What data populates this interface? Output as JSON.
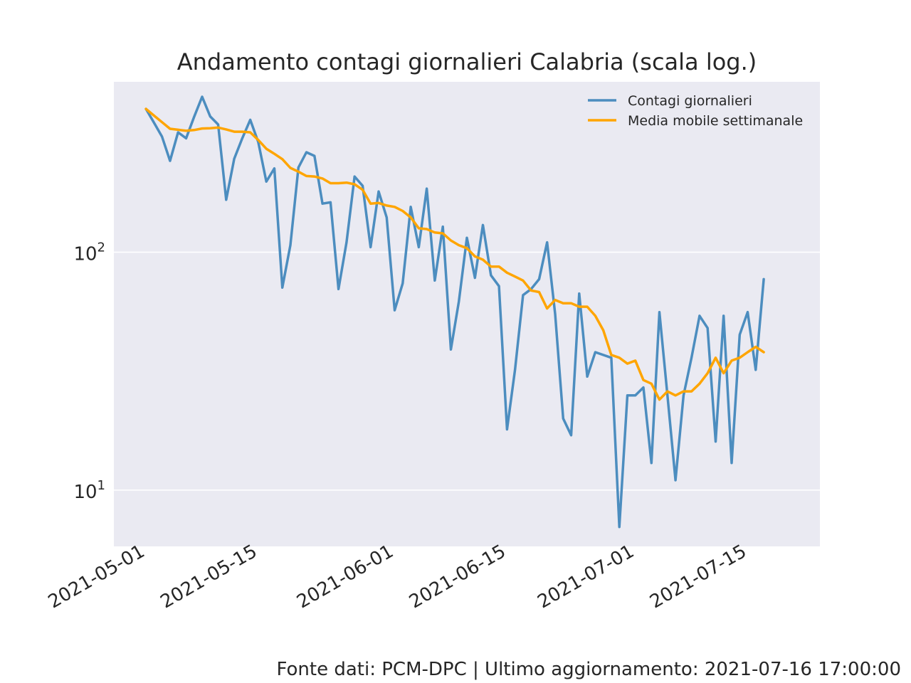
{
  "chart_data": {
    "type": "line",
    "title": "Andamento contagi giornalieri Calabria (scala log.)",
    "yscale": "log",
    "ylim": [
      5.8,
      520
    ],
    "xlim": [
      "2021-04-27",
      "2021-07-24"
    ],
    "grid": true,
    "legend_position": "top-right",
    "x_ticks": [
      "2021-05-01",
      "2021-05-15",
      "2021-06-01",
      "2021-06-15",
      "2021-07-01",
      "2021-07-15"
    ],
    "y_ticks": [
      {
        "value": 10,
        "base": "10",
        "exp": "1"
      },
      {
        "value": 100,
        "base": "10",
        "exp": "2"
      }
    ],
    "x": [
      "2021-05-01",
      "2021-05-02",
      "2021-05-03",
      "2021-05-04",
      "2021-05-05",
      "2021-05-06",
      "2021-05-07",
      "2021-05-08",
      "2021-05-09",
      "2021-05-10",
      "2021-05-11",
      "2021-05-12",
      "2021-05-13",
      "2021-05-14",
      "2021-05-15",
      "2021-05-16",
      "2021-05-17",
      "2021-05-18",
      "2021-05-19",
      "2021-05-20",
      "2021-05-21",
      "2021-05-22",
      "2021-05-23",
      "2021-05-24",
      "2021-05-25",
      "2021-05-26",
      "2021-05-27",
      "2021-05-28",
      "2021-05-29",
      "2021-05-30",
      "2021-05-31",
      "2021-06-01",
      "2021-06-02",
      "2021-06-03",
      "2021-06-04",
      "2021-06-05",
      "2021-06-06",
      "2021-06-07",
      "2021-06-08",
      "2021-06-09",
      "2021-06-10",
      "2021-06-11",
      "2021-06-12",
      "2021-06-13",
      "2021-06-14",
      "2021-06-15",
      "2021-06-16",
      "2021-06-17",
      "2021-06-18",
      "2021-06-19",
      "2021-06-20",
      "2021-06-21",
      "2021-06-22",
      "2021-06-23",
      "2021-06-24",
      "2021-06-25",
      "2021-06-26",
      "2021-06-27",
      "2021-06-28",
      "2021-06-29",
      "2021-06-30",
      "2021-07-01",
      "2021-07-02",
      "2021-07-03",
      "2021-07-04",
      "2021-07-05",
      "2021-07-06",
      "2021-07-07",
      "2021-07-08",
      "2021-07-09",
      "2021-07-10",
      "2021-07-11",
      "2021-07-12",
      "2021-07-13",
      "2021-07-14",
      "2021-07-15",
      "2021-07-16",
      "2021-07-17"
    ],
    "series": [
      {
        "name": "Contagi giornalieri",
        "color": "#4c8dbf",
        "values": [
          400,
          350,
          306,
          242,
          319,
          301,
          370,
          450,
          372,
          344,
          166,
          247,
          301,
          360,
          290,
          198,
          225,
          71,
          107,
          227,
          263,
          254,
          160,
          162,
          70,
          110,
          208,
          190,
          105,
          180,
          140,
          57,
          74,
          155,
          105,
          185,
          76,
          128,
          39,
          62,
          115,
          78,
          130,
          80,
          72,
          18,
          32,
          66,
          70,
          77,
          110,
          55,
          20,
          17,
          67,
          30,
          38,
          37,
          36,
          7,
          25,
          25,
          27,
          13,
          56,
          25,
          11,
          25,
          36,
          54,
          48,
          16,
          54,
          13,
          45,
          56,
          32,
          77
        ]
      },
      {
        "name": "Media mobile settimanale",
        "color": "#ffa500",
        "values": [
          400,
          375,
          352,
          330,
          327,
          324,
          326,
          331,
          332,
          334,
          328,
          321,
          321,
          319,
          296,
          272,
          259,
          246,
          226,
          218,
          209,
          208,
          204,
          195,
          195,
          196,
          193,
          183,
          160,
          161,
          157,
          155,
          149,
          140,
          126,
          125,
          121,
          120,
          112,
          107,
          104,
          96,
          93,
          87,
          87,
          82,
          79,
          76,
          69,
          68,
          58,
          63,
          61,
          61,
          59,
          59,
          54,
          47,
          37,
          36,
          34,
          35,
          29,
          28,
          24,
          26,
          25,
          26,
          26,
          28,
          31,
          36,
          31,
          35,
          36,
          38,
          40,
          38
        ]
      }
    ],
    "source_note": "Fonte dati: PCM-DPC | Ultimo aggiornamento: 2021-07-16 17:00:00"
  }
}
